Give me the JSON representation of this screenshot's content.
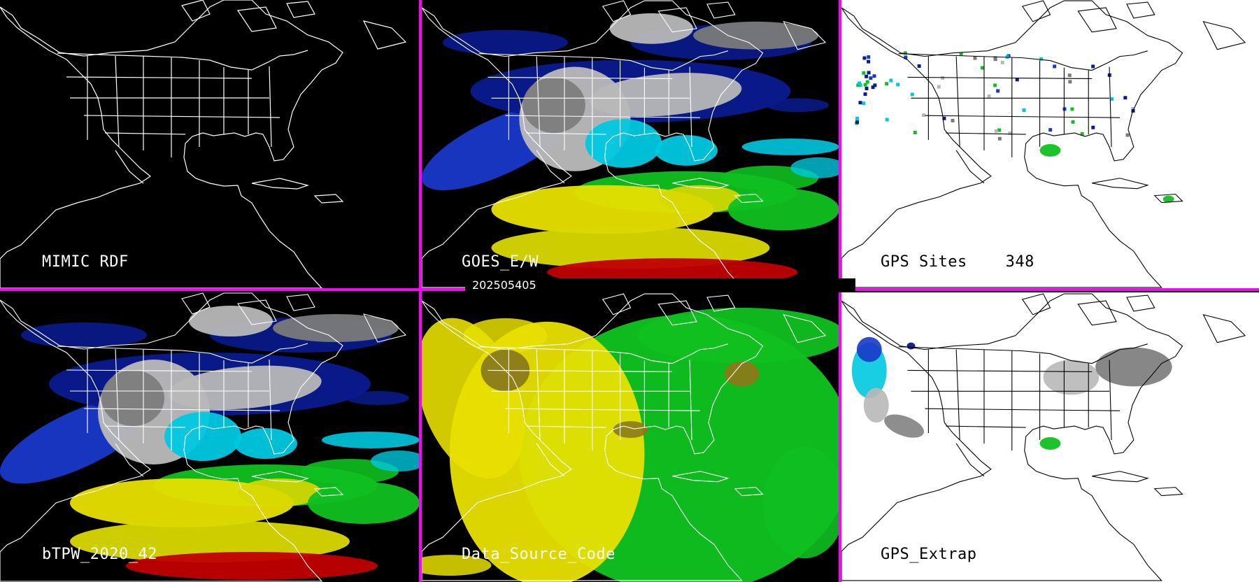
{
  "timestamp": "202505405",
  "colors": {
    "divider": "#ff00ff",
    "coastline_dark": "#ffffff",
    "coastline_light": "#000000",
    "ocean_dark": "#000000",
    "ocean_light": "#ffffff",
    "palette": [
      "#0a1a8f",
      "#1838c8",
      "#00c8e0",
      "#10c020",
      "#e8e000",
      "#d8d800",
      "#c00000",
      "#b8b8b8",
      "#7a7a7a"
    ]
  },
  "panels": [
    {
      "id": "mimic-rdf",
      "label": "MIMIC RDF",
      "theme": "dark",
      "layer": "basemap-only"
    },
    {
      "id": "goes-ew",
      "label": "GOES_E/W",
      "theme": "dark",
      "layer": "precipitable-water"
    },
    {
      "id": "gps-sites",
      "label": "GPS Sites    348",
      "theme": "light",
      "layer": "station-points"
    },
    {
      "id": "btpw",
      "label": "bTPW_2020_42",
      "theme": "dark",
      "layer": "precipitable-water"
    },
    {
      "id": "data-source-code",
      "label": "Data_Source_Code",
      "theme": "dark",
      "layer": "source-code"
    },
    {
      "id": "gps-extrap",
      "label": "GPS_Extrap",
      "theme": "light",
      "layer": "extrapolated"
    }
  ]
}
